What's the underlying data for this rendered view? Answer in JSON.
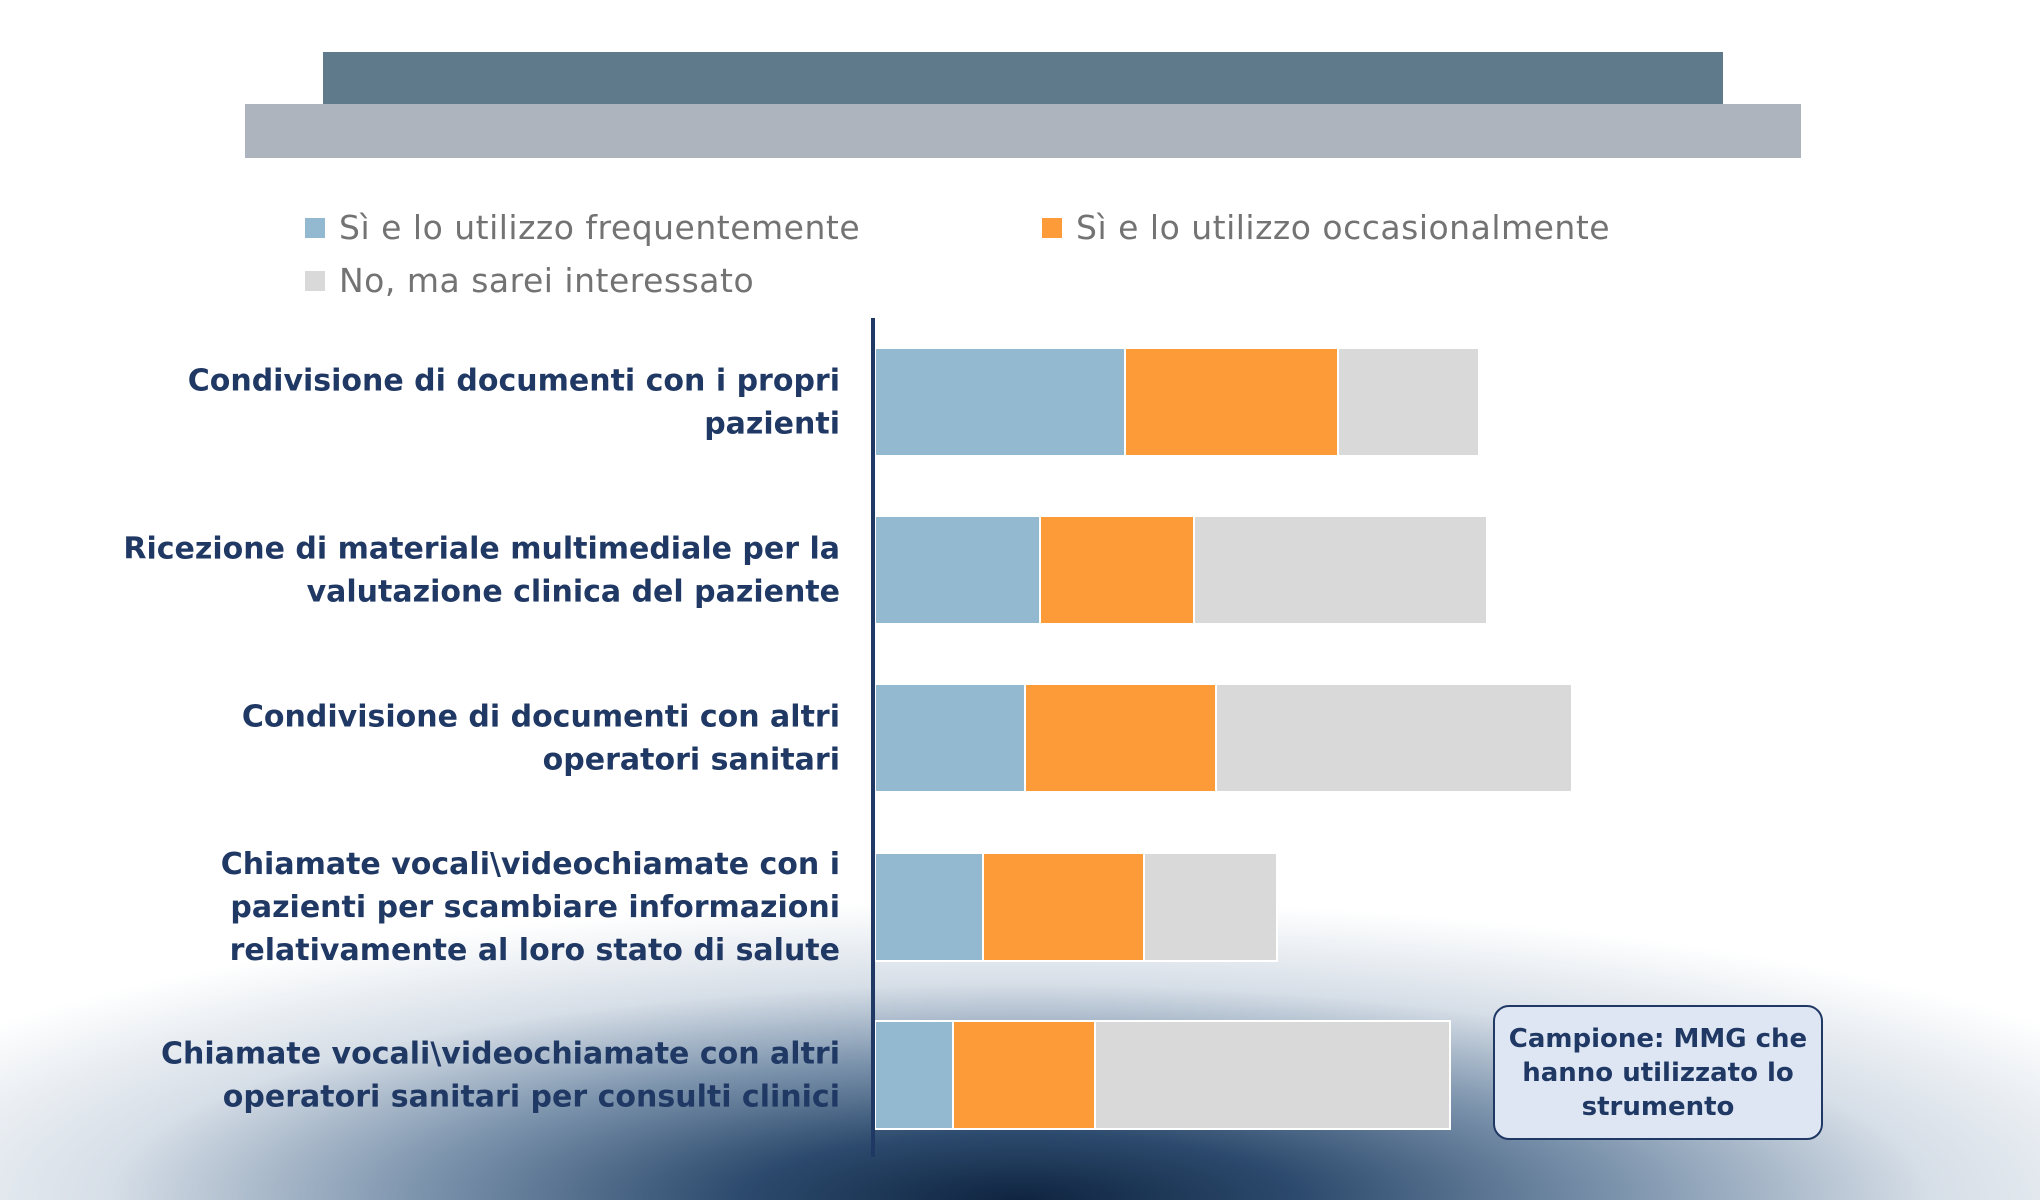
{
  "chart_data": {
    "type": "bar",
    "orientation": "horizontal",
    "stacked": true,
    "title": "",
    "xlabel": "",
    "ylabel": "",
    "grid": false,
    "legend_position": "top",
    "categories": [
      [
        "Condivisione di documenti con i propri",
        "pazienti"
      ],
      [
        "Ricezione di materiale multimediale per la",
        "valutazione clinica del paziente"
      ],
      [
        "Condivisione di documenti con altri",
        "operatori sanitari"
      ],
      [
        "Chiamate vocali\\videochiamate con i",
        "pazienti per scambiare informazioni",
        "relativamente al loro stato di salute"
      ],
      [
        "Chiamate vocali\\videochiamate con altri",
        "operatori sanitari per consulti clinici"
      ]
    ],
    "series": [
      {
        "name": "Sì e lo utilizzo frequentemente",
        "color": "#92b9d0",
        "values": [
          25,
          16.5,
          15,
          10.8,
          7.8
        ]
      },
      {
        "name": "Sì e lo utilizzo occasionalmente",
        "color": "#fd9b38",
        "values": [
          21.3,
          15.4,
          19.1,
          16.1,
          14.2
        ]
      },
      {
        "name": "No, ma sarei interessato",
        "color": "#d9d9d9",
        "values": [
          14.1,
          29.3,
          35.6,
          13.3,
          35.5
        ]
      }
    ],
    "xlim": [
      0,
      100
    ],
    "note": "Campione: MMG che hanno utilizzato lo strumento"
  }
}
